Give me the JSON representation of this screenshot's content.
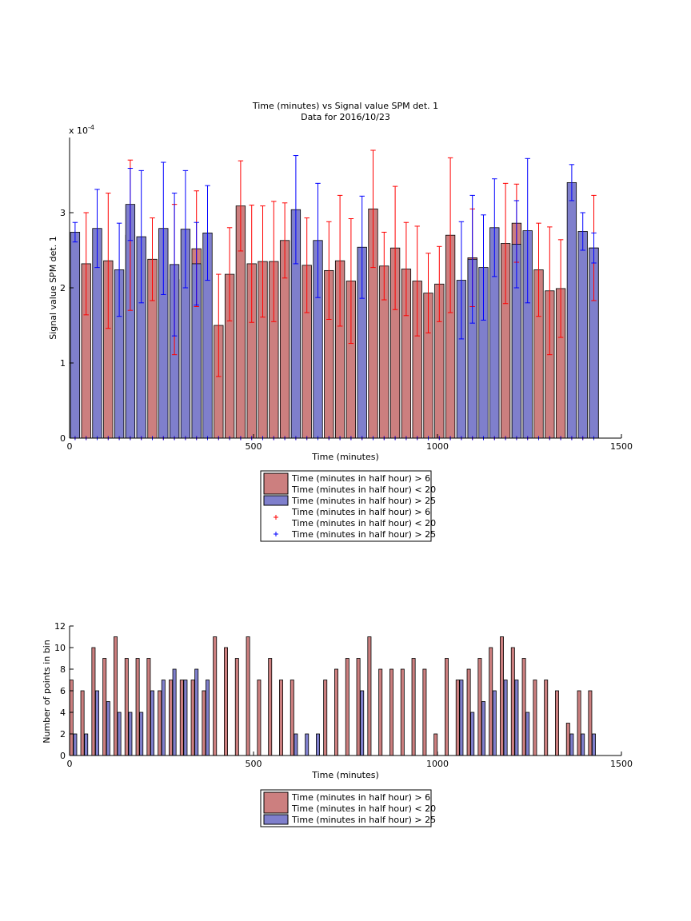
{
  "colors": {
    "red_face": "#cc7f7f",
    "red_line": "#ff0000",
    "blue_face": "#7f7fcc",
    "blue_line": "#0000ff",
    "bar_edge": "#000000"
  },
  "chart_data": [
    {
      "type": "bar",
      "title": "Time (minutes) vs Signal value SPM det. 1",
      "subtitle": "Data for 2016/10/23",
      "xlabel": "Time (minutes)",
      "ylabel": "Signal value SPM det. 1",
      "y_exponent_label": "x 10",
      "y_exponent_power": "-4",
      "xlim": [
        0,
        1500
      ],
      "ylim": [
        0,
        4.0
      ],
      "xticks": [
        "0",
        "500",
        "1000",
        "1500"
      ],
      "yticks": [
        "0",
        "1",
        "2",
        "3"
      ],
      "bar_width": 25,
      "grid": false,
      "legend_position": "below",
      "legend": [
        {
          "kind": "patch",
          "color": "red",
          "lines": [
            "Time (minutes in half hour) > 6",
            "Time (minutes in half hour) < 20"
          ]
        },
        {
          "kind": "patch",
          "color": "blue",
          "lines": [
            "Time (minutes in half hour) > 25"
          ]
        },
        {
          "kind": "marker",
          "color": "red",
          "lines": [
            "Time (minutes in half hour) > 6",
            "Time (minutes in half hour) < 20"
          ]
        },
        {
          "kind": "marker",
          "color": "blue",
          "lines": [
            "Time (minutes in half hour) > 25"
          ]
        }
      ],
      "series": [
        {
          "color": "red",
          "x": [
            45,
            105,
            165,
            225,
            285,
            345,
            405,
            435,
            465,
            495,
            525,
            555,
            585,
            645,
            705,
            735,
            765,
            825,
            855,
            885,
            915,
            945,
            975,
            1005,
            1035,
            1095,
            1185,
            1215,
            1275,
            1305,
            1335,
            1425
          ],
          "values": [
            2.32,
            2.36,
            2.7,
            2.38,
            2.11,
            2.52,
            1.5,
            2.18,
            3.09,
            2.32,
            2.35,
            2.35,
            2.63,
            2.3,
            2.23,
            2.36,
            2.09,
            3.05,
            2.29,
            2.53,
            2.25,
            2.09,
            1.93,
            2.05,
            2.7,
            2.4,
            2.59,
            2.86,
            2.24,
            1.96,
            1.99,
            2.53
          ],
          "err": [
            0.68,
            0.9,
            1.0,
            0.55,
            1.0,
            0.77,
            0.68,
            0.62,
            0.6,
            0.78,
            0.74,
            0.8,
            0.5,
            0.63,
            0.65,
            0.87,
            0.83,
            0.78,
            0.45,
            0.82,
            0.62,
            0.73,
            0.53,
            0.5,
            1.03,
            0.65,
            0.8,
            0.52,
            0.62,
            0.85,
            0.65,
            0.7
          ]
        },
        {
          "color": "blue",
          "x": [
            15,
            75,
            135,
            165,
            195,
            255,
            285,
            315,
            345,
            375,
            615,
            675,
            795,
            1065,
            1095,
            1125,
            1155,
            1215,
            1245,
            1365,
            1395,
            1425
          ],
          "values": [
            2.74,
            2.79,
            2.24,
            3.11,
            2.68,
            2.79,
            2.31,
            2.78,
            2.32,
            2.73,
            3.04,
            2.63,
            2.54,
            2.1,
            2.38,
            2.27,
            2.8,
            2.58,
            2.76,
            3.4,
            2.75,
            2.53
          ],
          "err": [
            0.13,
            0.52,
            0.62,
            0.48,
            0.88,
            0.88,
            0.95,
            0.78,
            0.55,
            0.63,
            0.72,
            0.76,
            0.68,
            0.78,
            0.85,
            0.7,
            0.65,
            0.58,
            0.96,
            0.24,
            0.25,
            0.2
          ]
        }
      ],
      "red_markers_x": [
        15,
        45,
        75,
        105,
        135,
        165,
        195,
        225,
        255,
        285,
        315,
        345,
        375,
        405,
        435,
        465,
        495,
        525,
        555,
        585,
        615,
        645,
        675,
        705,
        735,
        765,
        795,
        825,
        855,
        885,
        915,
        945,
        975,
        1005,
        1035,
        1065,
        1095,
        1125,
        1155,
        1185,
        1215,
        1245,
        1275,
        1305,
        1335,
        1365,
        1395,
        1425
      ],
      "blue_markers_x": [
        15,
        45,
        75,
        105,
        135,
        165,
        195,
        225,
        255,
        285,
        315,
        345,
        375,
        405,
        435,
        465,
        495,
        525,
        555,
        585,
        615,
        645,
        675,
        705,
        735,
        765,
        795,
        825,
        855,
        885,
        915,
        945,
        975,
        1005,
        1035,
        1065,
        1095,
        1125,
        1155,
        1185,
        1215,
        1245,
        1275,
        1305,
        1335,
        1365,
        1395,
        1425
      ]
    },
    {
      "type": "bar",
      "xlabel": "Time (minutes)",
      "ylabel": "Number of points in bin",
      "xlim": [
        0,
        1500
      ],
      "ylim": [
        0,
        12
      ],
      "xticks": [
        "0",
        "500",
        "1000",
        "1500"
      ],
      "yticks": [
        "0",
        "2",
        "4",
        "6",
        "8",
        "10",
        "12"
      ],
      "bar_width": 9,
      "grid": false,
      "legend_position": "below",
      "legend": [
        {
          "kind": "patch",
          "color": "red",
          "lines": [
            "Time (minutes in half hour) > 6",
            "Time (minutes in half hour) < 20"
          ]
        },
        {
          "kind": "patch",
          "color": "blue",
          "lines": [
            "Time (minutes in half hour) > 25"
          ]
        }
      ],
      "series": [
        {
          "color": "red",
          "x": [
            5,
            35,
            65,
            95,
            125,
            155,
            185,
            215,
            245,
            275,
            305,
            335,
            365,
            395,
            425,
            455,
            485,
            515,
            545,
            575,
            605,
            695,
            725,
            755,
            785,
            815,
            845,
            875,
            905,
            935,
            965,
            995,
            1025,
            1055,
            1085,
            1115,
            1145,
            1175,
            1205,
            1235,
            1265,
            1295,
            1325,
            1355,
            1385,
            1415
          ],
          "values": [
            7,
            6,
            10,
            9,
            11,
            9,
            9,
            9,
            6,
            7,
            7,
            7,
            6,
            11,
            10,
            9,
            11,
            7,
            9,
            7,
            7,
            7,
            8,
            9,
            9,
            11,
            8,
            8,
            8,
            9,
            8,
            2,
            9,
            7,
            8,
            9,
            10,
            11,
            10,
            9,
            7,
            7,
            6,
            3,
            6,
            6
          ]
        },
        {
          "color": "blue",
          "x": [
            15,
            45,
            75,
            105,
            135,
            165,
            195,
            225,
            255,
            285,
            315,
            345,
            375,
            615,
            645,
            675,
            795,
            1065,
            1095,
            1125,
            1155,
            1185,
            1215,
            1245,
            1365,
            1395,
            1425
          ],
          "values": [
            2,
            2,
            6,
            5,
            4,
            4,
            4,
            6,
            7,
            8,
            7,
            8,
            7,
            2,
            2,
            2,
            6,
            7,
            4,
            5,
            6,
            7,
            7,
            4,
            2,
            2,
            2
          ]
        }
      ]
    }
  ]
}
